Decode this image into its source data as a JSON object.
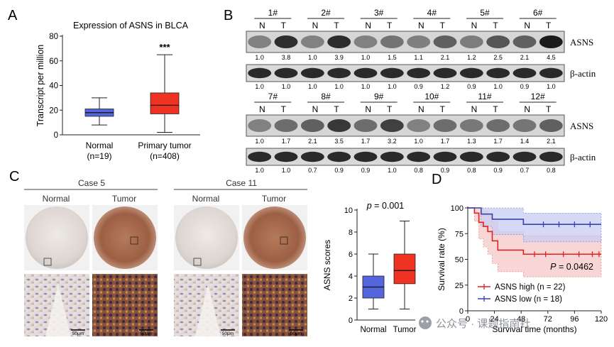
{
  "panels": {
    "a": {
      "letter": "A",
      "title": "Expression of ASNS in BLCA",
      "significance": "***"
    },
    "b": {
      "letter": "B",
      "pair_labels": {
        "normal": "N",
        "tumor": "T"
      },
      "target_label": "ASNS",
      "control_label": "β-actin",
      "row1": {
        "cases": [
          "1#",
          "2#",
          "3#",
          "4#",
          "5#",
          "6#"
        ],
        "asns_values": [
          "1.0",
          "3.8",
          "1.0",
          "3.9",
          "1.0",
          "1.5",
          "1.1",
          "2.1",
          "1.2",
          "2.5",
          "2.1",
          "4.5"
        ],
        "actin_values": [
          "1.0",
          "1.0",
          "1.0",
          "1.0",
          "1.0",
          "1.0",
          "0.9",
          "1.2",
          "0.9",
          "1.0",
          "0.9",
          "1.0"
        ]
      },
      "row2": {
        "cases": [
          "7#",
          "8#",
          "9#",
          "10#",
          "11#",
          "12#"
        ],
        "asns_values": [
          "1.0",
          "1.7",
          "2.1",
          "3.5",
          "1.7",
          "3.2",
          "1.0",
          "1.7",
          "1.3",
          "1.7",
          "1.4",
          "2.1"
        ],
        "actin_values": [
          "1.0",
          "1.0",
          "0.7",
          "0.9",
          "0.9",
          "1.0",
          "0.8",
          "0.9",
          "0.8",
          "0.9",
          "0.7",
          "0.8"
        ]
      }
    },
    "c": {
      "letter": "C",
      "case_groups": [
        {
          "title": "Case 5",
          "normal_label": "Normal",
          "tumor_label": "Tumor"
        },
        {
          "title": "Case 11",
          "normal_label": "Normal",
          "tumor_label": "Tumor"
        }
      ],
      "scale_bar": "50μm",
      "p_text": "= 0.001",
      "p_symbol": "p"
    },
    "d": {
      "letter": "D",
      "p_symbol": "P",
      "p_text": "= 0.0462"
    }
  },
  "watermark": {
    "text": "公众号 · 课题指南针"
  },
  "colors": {
    "normal_box": "#5566dd",
    "tumor_box": "#ee3322",
    "asns_high": "#dd2222",
    "asns_low": "#3344aa",
    "high_band": "#f7c9c9",
    "low_band": "#c9cdf3",
    "h_tumor": "#a86a4a",
    "h_normal": "#e8e3df"
  },
  "chart_data": [
    {
      "id": "a",
      "type": "box",
      "title": "Expression of ASNS in BLCA",
      "ylabel": "Transcript per million",
      "xlabel": "",
      "ylim": [
        0,
        80
      ],
      "yticks": [
        "0",
        "20",
        "40",
        "60",
        "80"
      ],
      "categories": [
        "Normal\n(n=19)",
        "Primary tumor\n(n=408)"
      ],
      "category_names": [
        "Normal",
        "Primary tumor"
      ],
      "category_counts": [
        "(n=19)",
        "(n=408)"
      ],
      "series": [
        {
          "name": "Normal",
          "min": 8,
          "q1": 15,
          "median": 18,
          "q3": 21,
          "max": 30
        },
        {
          "name": "Primary tumor",
          "min": 2,
          "q1": 17,
          "median": 24,
          "q3": 34,
          "max": 65
        }
      ]
    },
    {
      "id": "c",
      "type": "box",
      "title": "",
      "ylabel": "ASNS scores",
      "xlabel": "",
      "ylim": [
        0,
        10
      ],
      "yticks": [
        "0",
        "2",
        "4",
        "6",
        "8",
        "10"
      ],
      "categories": [
        "Normal",
        "Tumor"
      ],
      "series": [
        {
          "name": "Normal",
          "min": 1,
          "q1": 2,
          "median": 3,
          "q3": 4,
          "max": 6
        },
        {
          "name": "Tumor",
          "min": 1,
          "q1": 3.3,
          "median": 4.5,
          "q3": 6,
          "max": 9
        }
      ]
    },
    {
      "id": "d",
      "type": "line",
      "title": "",
      "xlabel": "Survival time (months)",
      "ylabel": "Survival rate (%)",
      "xlim": [
        0,
        120
      ],
      "ylim": [
        0,
        100
      ],
      "xticks": [
        "0",
        "24",
        "48",
        "72",
        "96",
        "120"
      ],
      "yticks": [
        "0",
        "25",
        "50",
        "75",
        "100"
      ],
      "series": [
        {
          "name": "ASNS high (n = 22)",
          "x": [
            0,
            6,
            10,
            14,
            18,
            22,
            27,
            50,
            120
          ],
          "y": [
            100,
            95,
            86,
            82,
            77,
            68,
            59,
            55,
            55
          ],
          "band_upper": [
            100,
            100,
            100,
            97,
            93,
            87,
            77,
            73,
            73
          ],
          "band_lower": [
            100,
            87,
            70,
            62,
            55,
            46,
            38,
            33,
            33
          ]
        },
        {
          "name": "ASNS low (n = 18)",
          "x": [
            0,
            12,
            22,
            50,
            120
          ],
          "y": [
            100,
            94,
            89,
            84,
            84
          ],
          "band_upper": [
            100,
            100,
            100,
            95,
            95
          ],
          "band_lower": [
            100,
            82,
            74,
            67,
            67
          ]
        }
      ],
      "censor_high": [
        60,
        70,
        86,
        100,
        112,
        118
      ],
      "censor_low": [
        68,
        82,
        96,
        110
      ]
    }
  ]
}
